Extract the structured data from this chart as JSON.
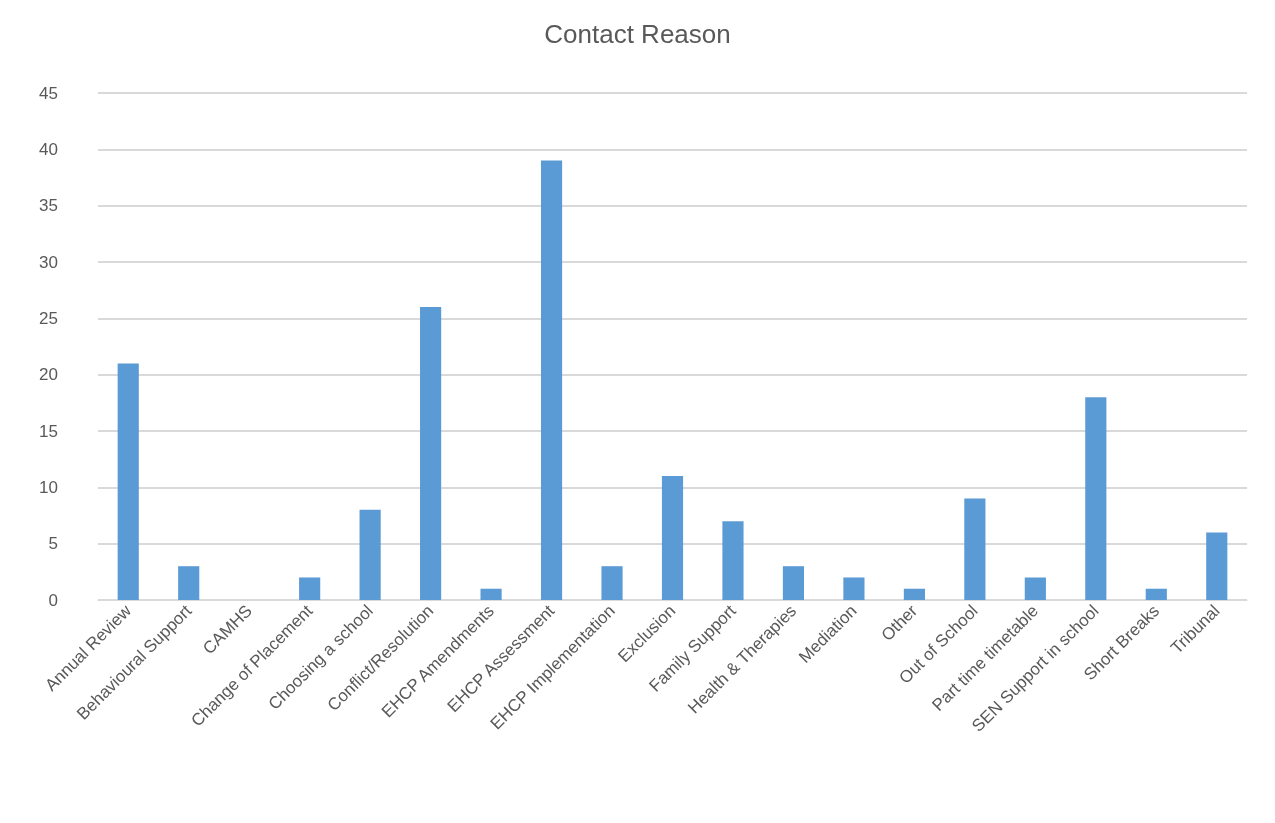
{
  "chart_data": {
    "type": "bar",
    "title": "Contact Reason",
    "categories": [
      "Annual Review",
      "Behavioural Support",
      "CAMHS",
      "Change of Placement",
      "Choosing a school",
      "Conflict/Resolution",
      "EHCP Amendments",
      "EHCP Assessment",
      "EHCP Implementation",
      "Exclusion",
      "Family Support",
      "Health & Therapies",
      "Mediation",
      "Other",
      "Out of School",
      "Part time timetable",
      "SEN Support in school",
      "Short Breaks",
      "Tribunal"
    ],
    "values": [
      21,
      3,
      0,
      2,
      8,
      26,
      1,
      39,
      3,
      11,
      7,
      3,
      2,
      1,
      9,
      2,
      18,
      1,
      6
    ],
    "color": "#5b9bd5",
    "ylim": [
      0,
      45
    ],
    "yticks": [
      0,
      5,
      10,
      15,
      20,
      25,
      30,
      35,
      40,
      45
    ],
    "grid": "y"
  }
}
